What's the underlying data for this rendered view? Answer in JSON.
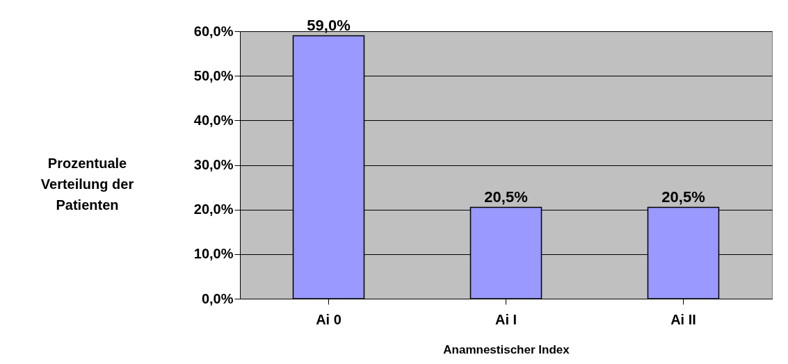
{
  "chart_data": {
    "type": "bar",
    "xlabel": "Anamnestischer Index",
    "ylabel": "Prozentuale Verteilung der Patienten",
    "categories": [
      "Ai 0",
      "Ai I",
      "Ai II"
    ],
    "values": [
      59.0,
      20.5,
      20.5
    ],
    "value_labels": [
      "59,0%",
      "20,5%",
      "20,5%"
    ],
    "color": "#9999ff",
    "ylim": [
      0,
      60
    ],
    "yticks": [
      {
        "value": 0,
        "label": "0,0%"
      },
      {
        "value": 10,
        "label": "10,0%"
      },
      {
        "value": 20,
        "label": "20,0%"
      },
      {
        "value": 30,
        "label": "30,0%"
      },
      {
        "value": 40,
        "label": "40,0%"
      },
      {
        "value": 50,
        "label": "50,0%"
      },
      {
        "value": 60,
        "label": "60,0%"
      }
    ],
    "grid": "y"
  }
}
